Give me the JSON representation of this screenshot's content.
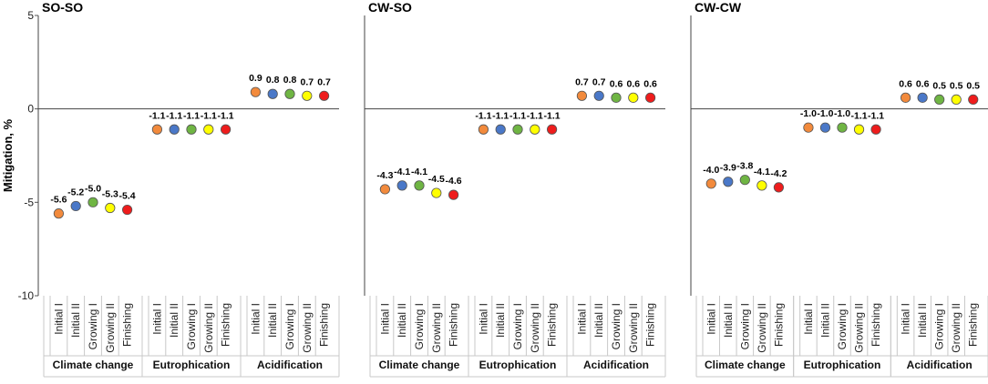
{
  "chart_data": {
    "type": "scatter",
    "ylabel": "Mitigation, %",
    "ylim": [
      -10,
      5
    ],
    "yticks": [
      5,
      0,
      -5,
      -10
    ],
    "stage_labels": [
      "Initial I",
      "Initial II",
      "Growing I",
      "Growing II",
      "Finishing"
    ],
    "category_labels": [
      "Climate change",
      "Eutrophication",
      "Acidification"
    ],
    "point_colors": [
      "#f28a3c",
      "#4a78c8",
      "#6fb543",
      "#ffff00",
      "#ee1c1c"
    ],
    "panels": [
      {
        "title": "SO-SO",
        "groups": [
          {
            "category": "Climate change",
            "values": [
              -5.6,
              -5.2,
              -5.0,
              -5.3,
              -5.4
            ],
            "labels": [
              "-5.6",
              "-5.2",
              "-5.0",
              "-5.3",
              "-5.4"
            ]
          },
          {
            "category": "Eutrophication",
            "values": [
              -1.1,
              -1.1,
              -1.1,
              -1.1,
              -1.1
            ],
            "labels": [
              "-1.1",
              "-1.1",
              "-1.1",
              "-1.1",
              "-1.1"
            ]
          },
          {
            "category": "Acidification",
            "values": [
              0.9,
              0.8,
              0.8,
              0.7,
              0.7
            ],
            "labels": [
              "0.9",
              "0.8",
              "0.8",
              "0.7",
              "0.7"
            ]
          }
        ]
      },
      {
        "title": "CW-SO",
        "groups": [
          {
            "category": "Climate change",
            "values": [
              -4.3,
              -4.1,
              -4.1,
              -4.5,
              -4.6
            ],
            "labels": [
              "-4.3",
              "-4.1",
              "-4.1",
              "-4.5",
              "-4.6"
            ]
          },
          {
            "category": "Eutrophication",
            "values": [
              -1.1,
              -1.1,
              -1.1,
              -1.1,
              -1.1
            ],
            "labels": [
              "-1.1",
              "-1.1",
              "-1.1",
              "-1.1",
              "-1.1"
            ]
          },
          {
            "category": "Acidification",
            "values": [
              0.7,
              0.7,
              0.6,
              0.6,
              0.6
            ],
            "labels": [
              "0.7",
              "0.7",
              "0.6",
              "0.6",
              "0.6"
            ]
          }
        ]
      },
      {
        "title": "CW-CW",
        "groups": [
          {
            "category": "Climate change",
            "values": [
              -4.0,
              -3.9,
              -3.8,
              -4.1,
              -4.2
            ],
            "labels": [
              "-4.0",
              "-3.9",
              "-3.8",
              "-4.1",
              "-4.2"
            ]
          },
          {
            "category": "Eutrophication",
            "values": [
              -1.0,
              -1.0,
              -1.0,
              -1.1,
              -1.1
            ],
            "labels": [
              "-1.0",
              "-1.0",
              "-1.0",
              "-1.1",
              "-1.1"
            ]
          },
          {
            "category": "Acidification",
            "values": [
              0.6,
              0.6,
              0.5,
              0.5,
              0.5
            ],
            "labels": [
              "0.6",
              "0.6",
              "0.5",
              "0.5",
              "0.5"
            ]
          }
        ]
      }
    ]
  }
}
